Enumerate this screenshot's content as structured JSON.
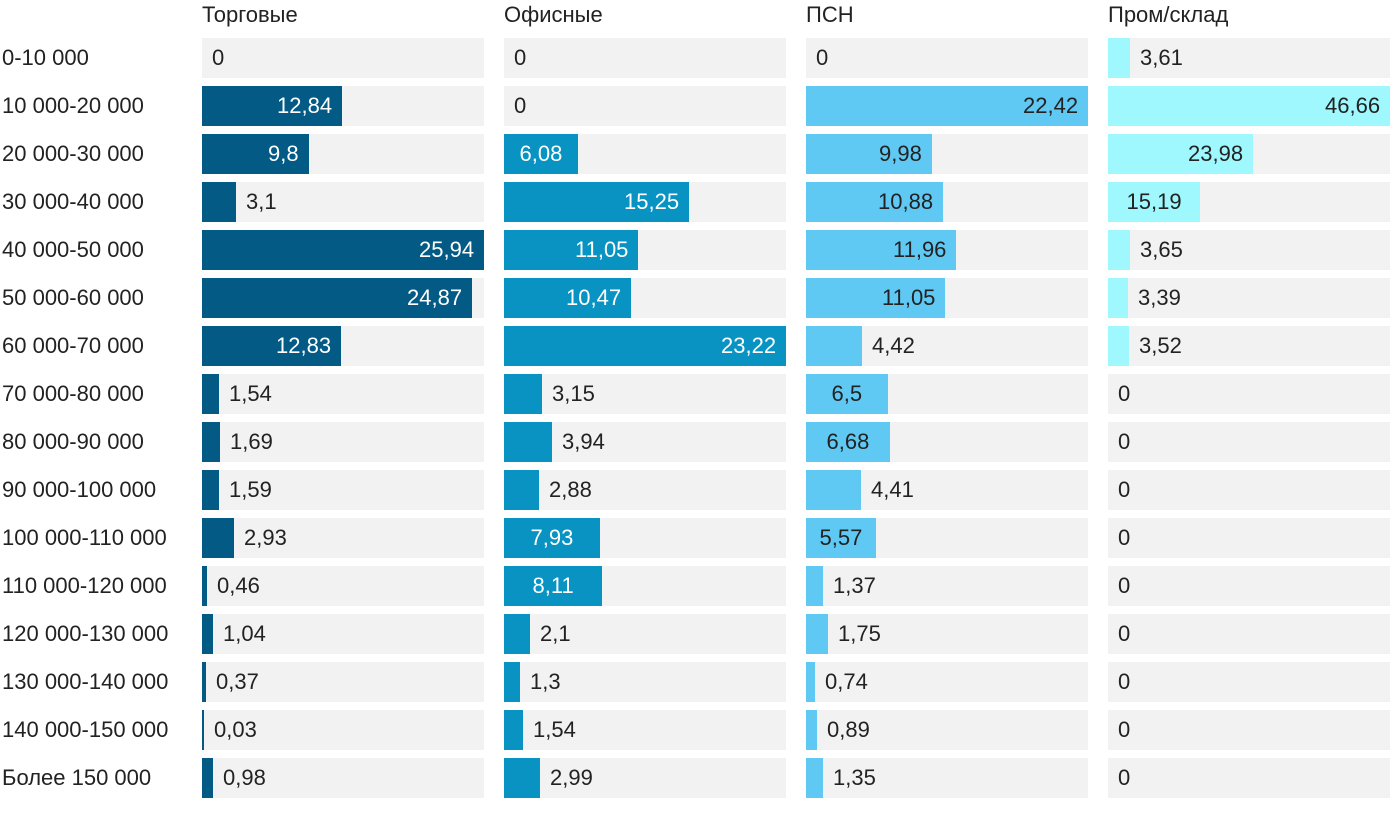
{
  "chart_data": {
    "type": "bar",
    "orientation": "horizontal",
    "layout": "small-multiples",
    "categories": [
      "0-10 000",
      "10 000-20 000",
      "20 000-30 000",
      "30 000-40 000",
      "40 000-50 000",
      "50 000-60 000",
      "60 000-70 000",
      "70 000-80 000",
      "80 000-90 000",
      "90 000-100 000",
      "100 000-110 000",
      "110 000-120 000",
      "120 000-130 000",
      "130 000-140 000",
      "140 000-150 000",
      "Более 150 000"
    ],
    "series": [
      {
        "name": "Торговые",
        "color": "#035a85",
        "values": [
          "0",
          "12,84",
          "9,8",
          "3,1",
          "25,94",
          "24,87",
          "12,83",
          "1,54",
          "1,69",
          "1,59",
          "2,93",
          "0,46",
          "1,04",
          "0,37",
          "0,03",
          "0,98"
        ]
      },
      {
        "name": "Офисные",
        "color": "#0893c2",
        "values": [
          "0",
          "0",
          "6,08",
          "15,25",
          "11,05",
          "10,47",
          "23,22",
          "3,15",
          "3,94",
          "2,88",
          "7,93",
          "8,11",
          "2,1",
          "1,3",
          "1,54",
          "2,99"
        ]
      },
      {
        "name": "ПСН",
        "color": "#5fc8f3",
        "values": [
          "0",
          "22,42",
          "9,98",
          "10,88",
          "11,96",
          "11,05",
          "4,42",
          "6,5",
          "6,68",
          "4,41",
          "5,57",
          "1,37",
          "1,75",
          "0,74",
          "0,89",
          "1,35"
        ]
      },
      {
        "name": "Пром/склад",
        "color": "#9ef8fd",
        "values": [
          "3,61",
          "46,66",
          "23,98",
          "15,19",
          "3,65",
          "3,39",
          "3,52",
          "0",
          "0",
          "0",
          "0",
          "0",
          "0",
          "0",
          "0",
          "0"
        ]
      }
    ],
    "xlim": [
      [
        0,
        25.94
      ],
      [
        0,
        23.22
      ],
      [
        0,
        22.42
      ],
      [
        0,
        46.66
      ]
    ],
    "grid": false,
    "legend": "none"
  }
}
